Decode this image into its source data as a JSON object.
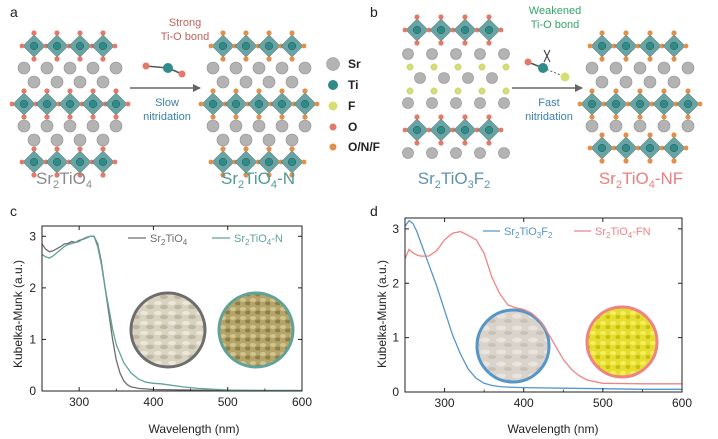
{
  "colors": {
    "sr": "#b3b3b3",
    "ti": "#2f8a8a",
    "oxygen": "#e27a6a",
    "onf": "#e0904a",
    "fluorine": "#d6dd73",
    "octahedron": "#5f9c9c",
    "gray_label": "#8a8a8a",
    "teal_label": "#4f9a96",
    "blue_label": "#5d92b4",
    "pink_label": "#ea7f7f",
    "strong_bond": "#c0625c",
    "weak_bond": "#33a46a",
    "c_curve_a": "#6d6d6d",
    "c_curve_b": "#5fa398",
    "d_curve_a": "#5596c8",
    "d_curve_b": "#ef8383"
  },
  "panel_a": {
    "letter": "a",
    "bond_line1": "Strong",
    "bond_line2": "Ti-O bond",
    "process_line1": "Slow",
    "process_line2": "nitridation",
    "left_label": {
      "base": "Sr",
      "sub1": "2",
      "mid": "TiO",
      "sub2": "4",
      "tail": ""
    },
    "right_label": {
      "base": "Sr",
      "sub1": "2",
      "mid": "TiO",
      "sub2": "4",
      "tail": "-N"
    }
  },
  "legend": {
    "items": [
      {
        "label": "Sr",
        "color_key": "sr"
      },
      {
        "label": "Ti",
        "color_key": "ti"
      },
      {
        "label": "F",
        "color_key": "fluorine"
      },
      {
        "label": "O",
        "color_key": "oxygen"
      },
      {
        "label": "O/N/F",
        "color_key": "onf"
      }
    ]
  },
  "panel_b": {
    "letter": "b",
    "bond_line1": "Weakened",
    "bond_line2": "Ti-O bond",
    "process_line1": "Fast",
    "process_line2": "nitridation",
    "left_label": {
      "base": "Sr",
      "sub1": "2",
      "mid": "TiO",
      "sub2": "3",
      "tail": "F",
      "sub3": "2"
    },
    "right_label": {
      "base": "Sr",
      "sub1": "2",
      "mid": "TiO",
      "sub2": "4",
      "tail": "-NF"
    }
  },
  "chart_data": [
    {
      "panel": "c",
      "type": "line",
      "xlabel": "Wavelength (nm)",
      "ylabel": "Kubelka-Munk (a.u.)",
      "xlim": [
        250,
        600
      ],
      "ylim": [
        0,
        3.2
      ],
      "xticks": [
        300,
        400,
        500,
        600
      ],
      "yticks": [
        0,
        1,
        2,
        3
      ],
      "legend_position": "top-right",
      "series": [
        {
          "name": "Sr2TiO4",
          "legend": {
            "base": "Sr",
            "sub1": "2",
            "mid": "TiO",
            "sub2": "4",
            "tail": ""
          },
          "color_key": "c_curve_a",
          "x": [
            250,
            255,
            260,
            265,
            270,
            275,
            280,
            285,
            290,
            295,
            300,
            305,
            310,
            315,
            320,
            325,
            330,
            335,
            340,
            345,
            350,
            355,
            360,
            365,
            370,
            380,
            400,
            450,
            500,
            600
          ],
          "y": [
            2.85,
            2.75,
            2.7,
            2.72,
            2.76,
            2.8,
            2.85,
            2.86,
            2.9,
            2.88,
            2.92,
            2.94,
            2.97,
            3.0,
            3.0,
            2.85,
            2.5,
            2.0,
            1.5,
            1.0,
            0.6,
            0.35,
            0.2,
            0.12,
            0.08,
            0.05,
            0.03,
            0.02,
            0.01,
            0.01
          ]
        },
        {
          "name": "Sr2TiO4-N",
          "legend": {
            "base": "Sr",
            "sub1": "2",
            "mid": "TiO",
            "sub2": "4",
            "tail": "-N"
          },
          "color_key": "c_curve_b",
          "x": [
            250,
            255,
            260,
            265,
            270,
            275,
            280,
            285,
            290,
            295,
            300,
            305,
            310,
            315,
            320,
            325,
            330,
            335,
            340,
            345,
            350,
            360,
            370,
            380,
            390,
            400,
            410,
            420,
            440,
            460,
            500,
            550,
            600
          ],
          "y": [
            2.65,
            2.6,
            2.58,
            2.62,
            2.68,
            2.74,
            2.8,
            2.84,
            2.86,
            2.88,
            2.9,
            2.95,
            2.98,
            3.0,
            3.0,
            2.8,
            2.45,
            2.0,
            1.6,
            1.2,
            0.9,
            0.55,
            0.35,
            0.23,
            0.17,
            0.15,
            0.14,
            0.12,
            0.08,
            0.05,
            0.02,
            0.01,
            0.01
          ]
        }
      ],
      "insets": [
        {
          "name": "Sr2TiO4 powder",
          "ring_key": "c_curve_a",
          "fill": "#d8d2c0"
        },
        {
          "name": "Sr2TiO4-N powder",
          "ring_key": "c_curve_b",
          "fill": "#b4a46a"
        }
      ]
    },
    {
      "panel": "d",
      "type": "line",
      "xlabel": "Wavelength (nm)",
      "ylabel": "Kubelka-Munk (a.u.)",
      "xlim": [
        250,
        600
      ],
      "ylim": [
        0,
        3.2
      ],
      "xticks": [
        300,
        400,
        500,
        600
      ],
      "yticks": [
        0,
        1,
        2,
        3
      ],
      "legend_position": "top",
      "series": [
        {
          "name": "Sr2TiO3F2",
          "legend": {
            "base": "Sr",
            "sub1": "2",
            "mid": "TiO",
            "sub2": "3",
            "tail": "F",
            "sub3": "2"
          },
          "color_key": "d_curve_a",
          "x": [
            250,
            255,
            260,
            265,
            270,
            275,
            280,
            290,
            300,
            310,
            320,
            330,
            340,
            350,
            360,
            370,
            380,
            400,
            450,
            500,
            550,
            600
          ],
          "y": [
            3.05,
            3.15,
            3.1,
            2.95,
            2.75,
            2.55,
            2.35,
            1.95,
            1.5,
            1.05,
            0.7,
            0.42,
            0.25,
            0.16,
            0.12,
            0.1,
            0.09,
            0.08,
            0.07,
            0.06,
            0.05,
            0.05
          ]
        },
        {
          "name": "Sr2TiO4-FN",
          "legend": {
            "base": "Sr",
            "sub1": "2",
            "mid": "TiO",
            "sub2": "4",
            "tail": "-FN"
          },
          "color_key": "d_curve_b",
          "x": [
            250,
            255,
            260,
            265,
            270,
            280,
            290,
            300,
            310,
            320,
            330,
            340,
            350,
            360,
            370,
            380,
            390,
            400,
            410,
            420,
            430,
            440,
            450,
            460,
            470,
            480,
            500,
            550,
            600
          ],
          "y": [
            2.45,
            2.62,
            2.56,
            2.52,
            2.5,
            2.5,
            2.6,
            2.8,
            2.92,
            2.95,
            2.88,
            2.8,
            2.55,
            2.1,
            1.8,
            1.6,
            1.55,
            1.52,
            1.45,
            1.32,
            1.1,
            0.85,
            0.6,
            0.42,
            0.3,
            0.22,
            0.16,
            0.15,
            0.15
          ]
        }
      ],
      "insets": [
        {
          "name": "Sr2TiO3F2 powder",
          "ring_key": "d_curve_a",
          "fill": "#d9d3cb"
        },
        {
          "name": "Sr2TiO4-FN powder",
          "ring_key": "d_curve_b",
          "fill": "#e6de2e"
        }
      ]
    }
  ]
}
